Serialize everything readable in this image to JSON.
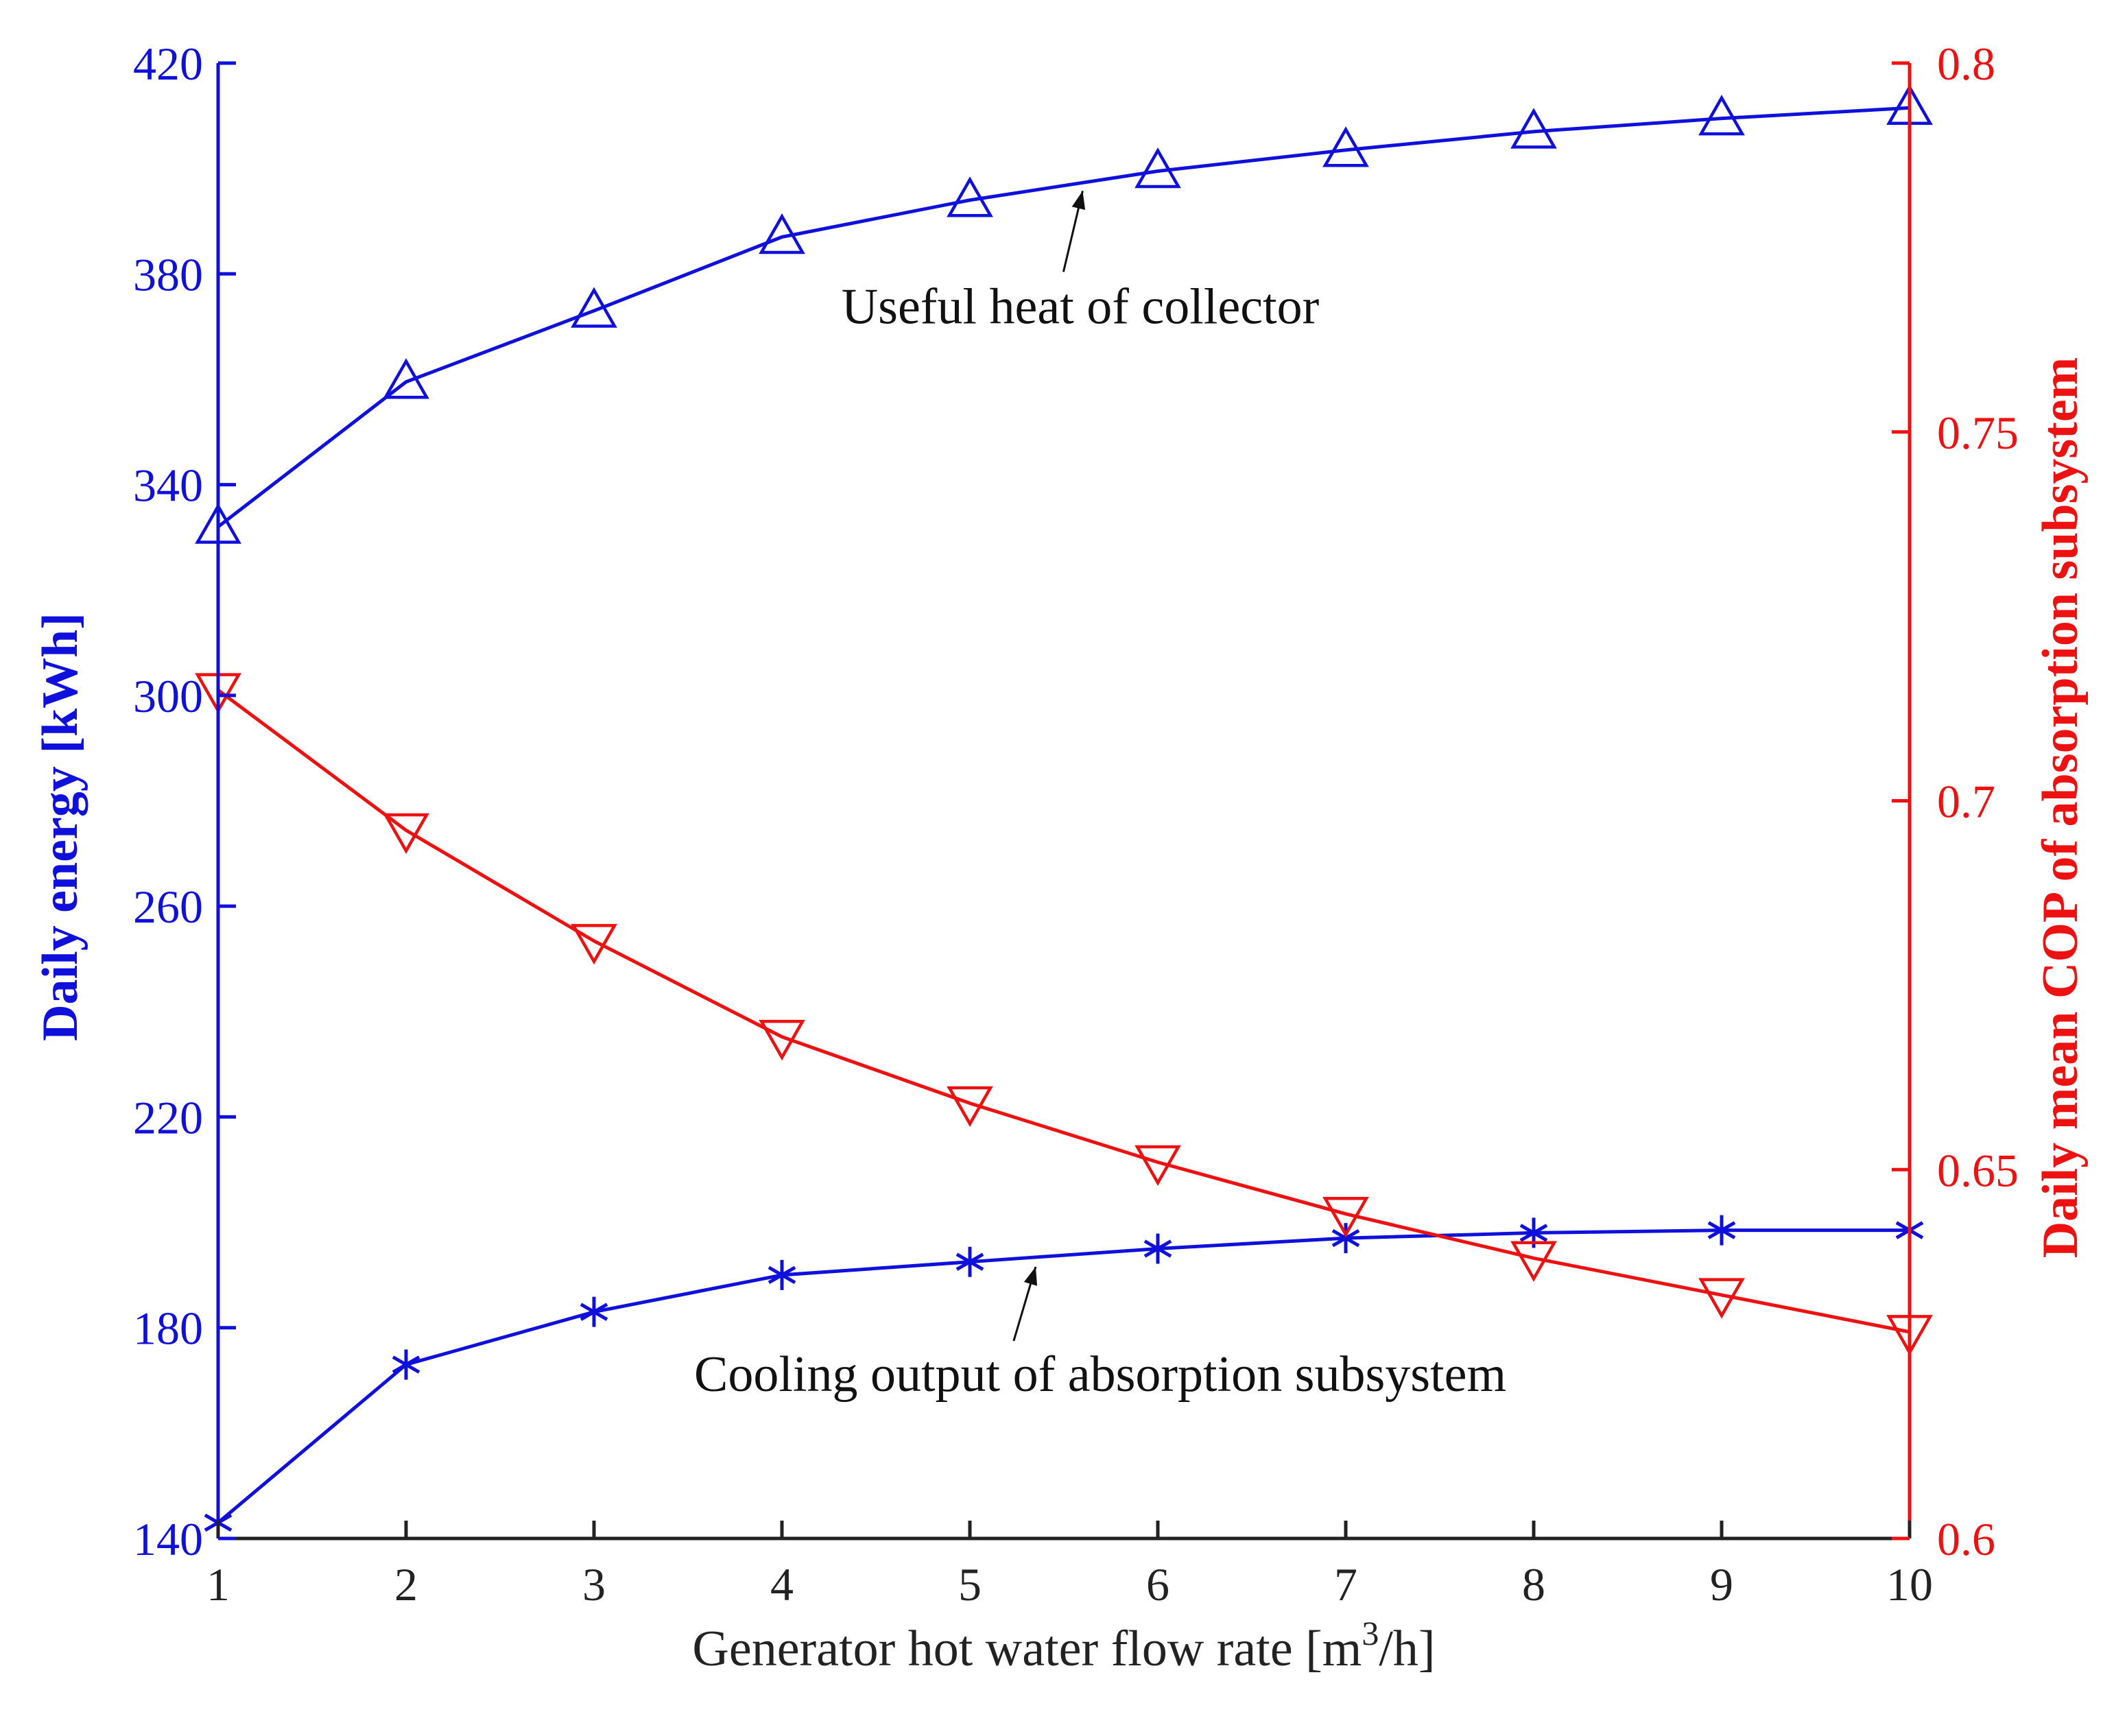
{
  "chart_data": {
    "type": "line",
    "title": "",
    "xlabel_prefix": "Generator hot water flow rate  [m",
    "xlabel_sup": "3",
    "xlabel_suffix": "/h]",
    "ylabel_left": "Daily energy [kWh]",
    "ylabel_right": "Daily mean COP of absorption subsystem",
    "x": [
      1,
      2,
      3,
      4,
      5,
      6,
      7,
      8,
      9,
      10
    ],
    "xlim": [
      1,
      10
    ],
    "ylim_left": [
      140,
      420
    ],
    "ylim_right": [
      0.6,
      0.8
    ],
    "xticks": [
      "1",
      "2",
      "3",
      "4",
      "5",
      "6",
      "7",
      "8",
      "9",
      "10"
    ],
    "yticks_left": [
      "140",
      "180",
      "220",
      "260",
      "300",
      "340",
      "380",
      "420"
    ],
    "yticks_right": [
      "0.6",
      "0.65",
      "0.7",
      "0.75",
      "0.8"
    ],
    "grid": false,
    "colors": {
      "left_axis": "#1010dd",
      "right_axis": "#ee1111"
    },
    "series": [
      {
        "name": "Useful heat of collector",
        "axis": "left",
        "marker": "triangle-up",
        "color": "#1010dd",
        "values": [
          332,
          359.5,
          373,
          387,
          394,
          399.5,
          403.5,
          407,
          409.5,
          411.5
        ]
      },
      {
        "name": "Cooling output of absorption subsystem",
        "axis": "left",
        "marker": "asterisk",
        "color": "#1010dd",
        "values": [
          143,
          173,
          183,
          190,
          192.5,
          195,
          197,
          198,
          198.5,
          198.5
        ]
      },
      {
        "name": "Daily mean COP of absorption subsystem",
        "axis": "right",
        "marker": "triangle-down",
        "color": "#ee1111",
        "values": [
          0.715,
          0.696,
          0.681,
          0.668,
          0.659,
          0.651,
          0.644,
          0.638,
          0.633,
          0.628
        ]
      }
    ],
    "annotations": [
      {
        "text": "Useful heat of collector",
        "series": 0,
        "arrow_to_x": 5.6
      },
      {
        "text": "Cooling output of absorption subsystem",
        "series": 1,
        "arrow_to_x": 5.35
      }
    ]
  }
}
